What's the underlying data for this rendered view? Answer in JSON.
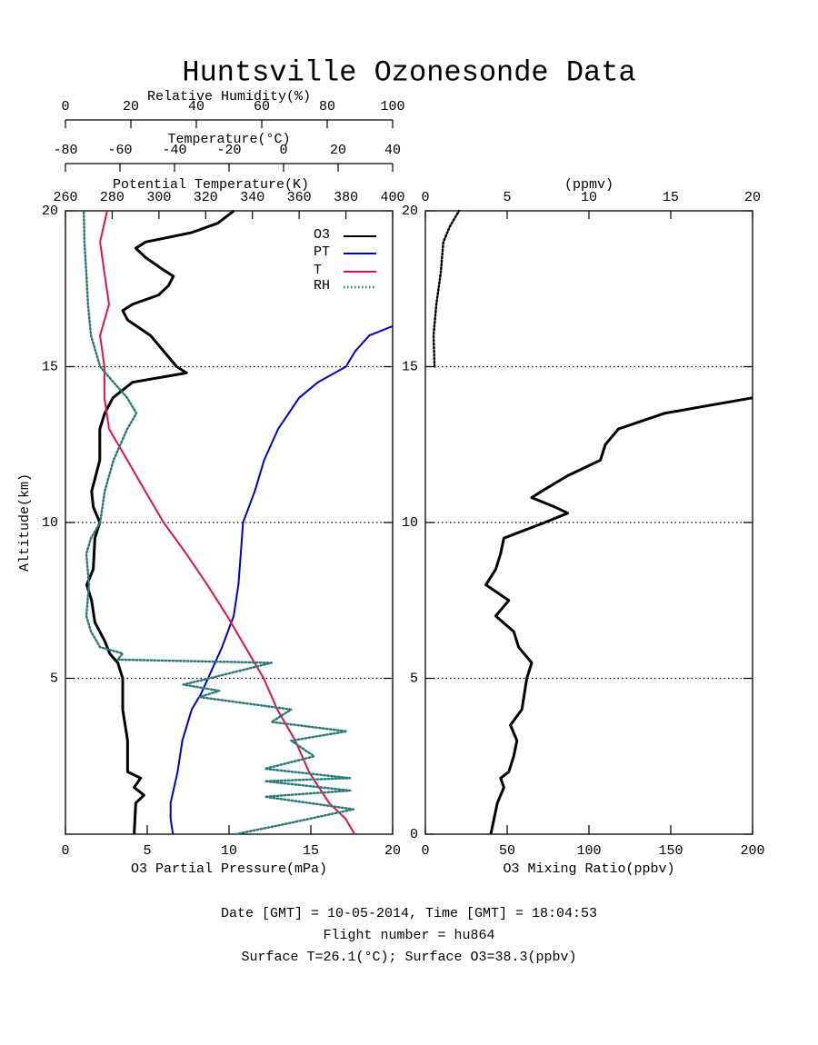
{
  "title": "Huntsville Ozonesonde Data",
  "footer": [
    "Date [GMT] = 10-05-2014,  Time [GMT] = 18:04:53",
    "Flight number = hu864",
    "Surface T=26.1(°C); Surface O3=38.3(ppbv)"
  ],
  "chart_data": [
    {
      "type": "line",
      "ylabel": "Altitude(km)",
      "ylim": [
        0,
        20
      ],
      "yticks": [
        5,
        10,
        15,
        20
      ],
      "grid": true,
      "xlabel": "O3 Partial Pressure(mPa)",
      "xlim": [
        0,
        20
      ],
      "xticks": [
        0,
        5,
        10,
        15,
        20
      ],
      "x2": {
        "label": "Potential Temperature(K)",
        "lim": [
          260,
          400
        ],
        "ticks": [
          260,
          280,
          300,
          320,
          340,
          360,
          380,
          400
        ]
      },
      "x3": {
        "label": "Temperature(°C)",
        "lim": [
          -80,
          40
        ],
        "ticks": [
          -80,
          -60,
          -40,
          -20,
          0,
          20,
          40
        ]
      },
      "x4": {
        "label": "Relative Humidity(%)",
        "lim": [
          0,
          100
        ],
        "ticks": [
          0,
          20,
          40,
          60,
          80,
          100
        ]
      },
      "legend": "upper right",
      "series": [
        {
          "name": "O3",
          "color": "#000000",
          "style": "solid",
          "axis": "x",
          "altitude": [
            0,
            1,
            1.25,
            1.5,
            1.8,
            2,
            3,
            4,
            5,
            5.5,
            5.8,
            6.2,
            6.8,
            7.5,
            8,
            8.5,
            9.5,
            10,
            10.5,
            11,
            12,
            13,
            13.5,
            14,
            14.5,
            14.8,
            15,
            15.5,
            16,
            16.5,
            16.8,
            17,
            17.3,
            17.6,
            17.9,
            18.1,
            18.5,
            18.8,
            19,
            19.3,
            19.6,
            20
          ],
          "values": [
            4.2,
            4.3,
            4.8,
            4.2,
            4.6,
            3.8,
            3.8,
            3.5,
            3.5,
            3.2,
            2.7,
            2.4,
            1.8,
            1.6,
            1.3,
            1.7,
            1.8,
            2.1,
            1.7,
            1.6,
            2.1,
            2.1,
            2.4,
            2.9,
            4.1,
            7.4,
            6.8,
            6.0,
            5.2,
            3.8,
            3.5,
            4.1,
            5.7,
            6.3,
            6.6,
            6.0,
            4.9,
            4.3,
            4.9,
            7.7,
            9.3,
            10.3
          ]
        },
        {
          "name": "PT",
          "color": "#0000cc",
          "style": "solid",
          "axis": "x2",
          "altitude": [
            0,
            0.5,
            1,
            2,
            3,
            4,
            4.5,
            5,
            6,
            7,
            8,
            9,
            10,
            11,
            12,
            13,
            14,
            14.5,
            15,
            15.5,
            16,
            16.3
          ],
          "values": [
            306,
            305,
            305,
            308,
            310,
            314,
            318,
            321,
            327,
            332,
            334,
            335,
            336,
            341,
            345,
            351,
            360,
            368,
            380,
            384,
            390,
            400
          ]
        },
        {
          "name": "T",
          "color": "#e8104a",
          "style": "solid",
          "axis": "x3",
          "altitude": [
            0,
            0.5,
            1,
            2,
            3,
            4,
            5,
            6,
            7,
            8,
            9,
            10,
            11,
            12,
            13,
            14,
            15,
            16,
            17,
            18,
            19,
            20
          ],
          "values": [
            26.1,
            22.7,
            16.7,
            9.3,
            4.3,
            -2.3,
            -7.3,
            -14,
            -20.7,
            -28,
            -35.7,
            -44,
            -50.7,
            -57.3,
            -64,
            -65.7,
            -65.7,
            -67.3,
            -64,
            -65.7,
            -67.3,
            -64.7
          ]
        },
        {
          "name": "RH",
          "color": "#2a7a7a",
          "style": "dotted",
          "axis": "x4",
          "altitude": [
            0,
            0.3,
            0.8,
            1.2,
            1.4,
            1.7,
            1.8,
            2.1,
            2.5,
            3,
            3.3,
            3.6,
            4,
            4.4,
            4.6,
            4.8,
            5,
            5.5,
            5.6,
            5.8,
            6,
            6.5,
            7,
            8,
            9,
            9.5,
            10,
            11,
            12,
            13,
            13.5,
            14,
            14.5,
            15,
            16,
            17,
            18,
            19,
            20
          ],
          "values": [
            52,
            66,
            88,
            61,
            87,
            61,
            87,
            61,
            76,
            69,
            86,
            63,
            69,
            41,
            47,
            36,
            44,
            63,
            16,
            17.5,
            10.6,
            7.8,
            6.4,
            7.2,
            6.4,
            7.8,
            10.6,
            12,
            14.7,
            18.9,
            21.7,
            18.9,
            14.7,
            10.6,
            7.8,
            6.9,
            6.4,
            5.8,
            5.6
          ]
        }
      ]
    },
    {
      "type": "line",
      "ylim": [
        0,
        20
      ],
      "yticks": [
        0,
        5,
        10,
        15,
        20
      ],
      "grid": true,
      "xlabel": "O3 Mixing Ratio(ppbv)",
      "xlim": [
        0,
        200
      ],
      "xticks": [
        0,
        50,
        100,
        150,
        200
      ],
      "x2": {
        "label": "(ppmv)",
        "lim": [
          0,
          20
        ],
        "ticks": [
          0,
          5,
          10,
          15,
          20
        ]
      },
      "series": [
        {
          "color": "#000000",
          "style": "solid",
          "axis": "x",
          "altitude": [
            0,
            0.5,
            1,
            1.5,
            1.8,
            2,
            2.5,
            3,
            3.5,
            4,
            5,
            5.5,
            6,
            6.5,
            7,
            7.5,
            8,
            8.5,
            9,
            9.5,
            10,
            10.3,
            10.5,
            10.8,
            11,
            11.5,
            12,
            12.5,
            13,
            13.5,
            14
          ],
          "values": [
            40,
            42,
            44,
            48,
            46,
            51,
            54,
            56,
            52,
            59,
            62,
            65,
            57,
            54,
            43,
            51,
            37,
            43,
            46,
            48,
            73,
            87,
            79,
            65,
            71,
            87,
            107,
            110,
            118,
            146,
            200
          ]
        },
        {
          "color": "#000000",
          "style": "dotted",
          "axis": "x2",
          "altitude": [
            15,
            16,
            17,
            18,
            19,
            19.5,
            20
          ],
          "values": [
            0.56,
            0.5,
            0.67,
            0.94,
            1.1,
            1.5,
            2.06
          ]
        }
      ]
    }
  ]
}
